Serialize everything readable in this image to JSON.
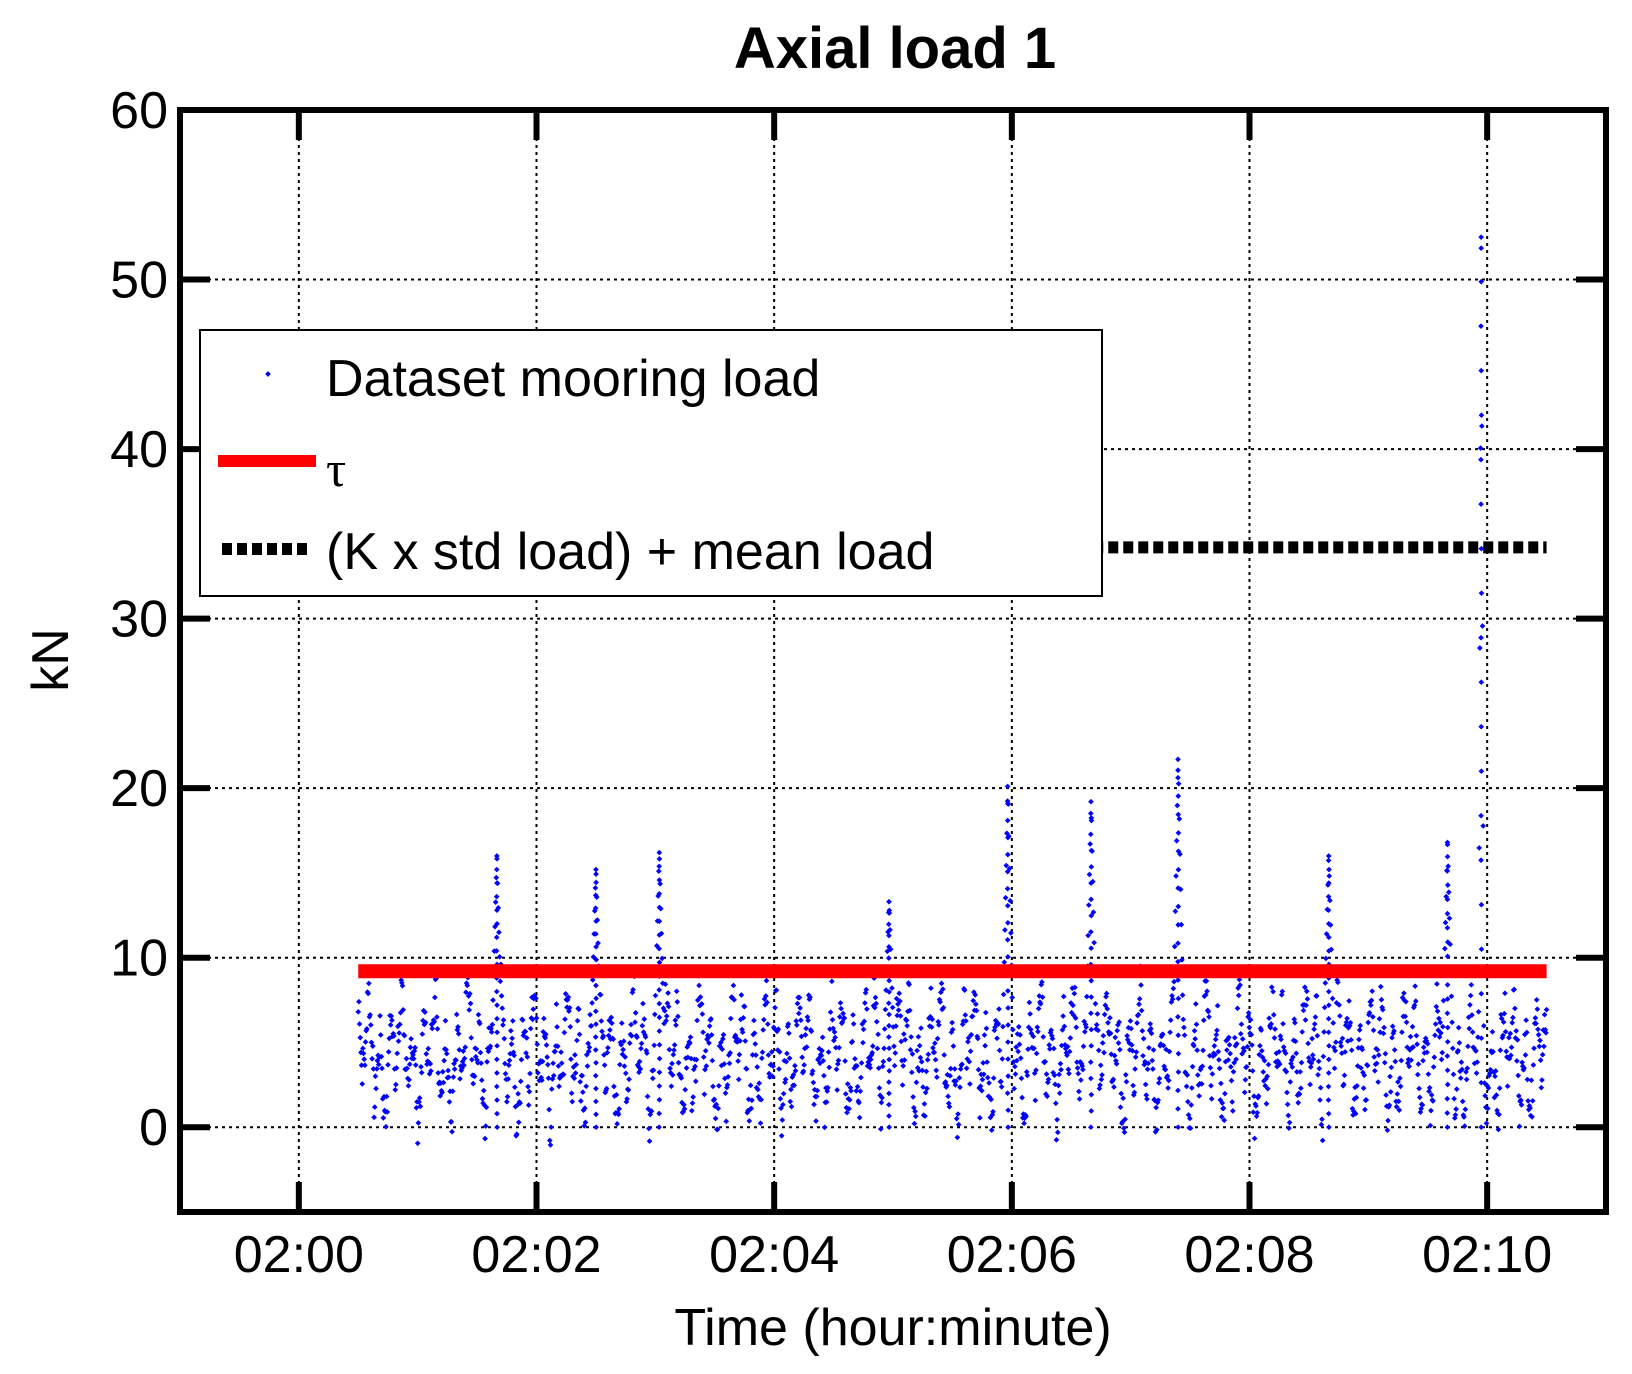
{
  "chart_data": {
    "type": "scatter",
    "title": "Axial load 1",
    "xlabel": "Time (hour:minute)",
    "ylabel": "kN",
    "xlim": [
      "01:59",
      "02:11"
    ],
    "ylim": [
      -5,
      60
    ],
    "x_ticks": [
      "02:00",
      "02:02",
      "02:04",
      "02:06",
      "02:08",
      "02:10"
    ],
    "y_ticks": [
      0,
      10,
      20,
      30,
      40,
      50,
      60
    ],
    "grid": true,
    "legend_position": "upper-left",
    "legend": [
      {
        "label": "Dataset mooring load",
        "color": "#0000ff",
        "style": "points"
      },
      {
        "label": "τ",
        "color": "#ff0000",
        "style": "solid-line"
      },
      {
        "label": "(K x std load) + mean load",
        "color": "#000000",
        "style": "dashed-line"
      }
    ],
    "series": [
      {
        "name": "Dataset mooring load",
        "kind": "scatter",
        "color": "#0000ff",
        "x_start": "02:00:30",
        "x_end": "02:10:30",
        "notable_peaks": [
          {
            "x": "02:01:40",
            "y": 16
          },
          {
            "x": "02:02:30",
            "y": 15.2
          },
          {
            "x": "02:03:02",
            "y": 16.2
          },
          {
            "x": "02:04:58",
            "y": 13.3
          },
          {
            "x": "02:05:58",
            "y": 20.1
          },
          {
            "x": "02:06:40",
            "y": 19.2
          },
          {
            "x": "02:07:24",
            "y": 21.7
          },
          {
            "x": "02:08:40",
            "y": 16
          },
          {
            "x": "02:09:40",
            "y": 16.8
          },
          {
            "x": "02:09:57",
            "y": 52.5
          }
        ],
        "typical_range": [
          0,
          10
        ],
        "min_observed": -1.1
      },
      {
        "name": "τ",
        "kind": "line",
        "color": "#ff0000",
        "x": [
          "02:00:30",
          "02:10:30"
        ],
        "y": [
          9.2,
          9.2
        ]
      },
      {
        "name": "(K x std load) + mean load",
        "kind": "dashed-line",
        "color": "#000000",
        "x": [
          "02:00:30",
          "02:10:30"
        ],
        "y": [
          34.2,
          34.2
        ]
      }
    ]
  }
}
